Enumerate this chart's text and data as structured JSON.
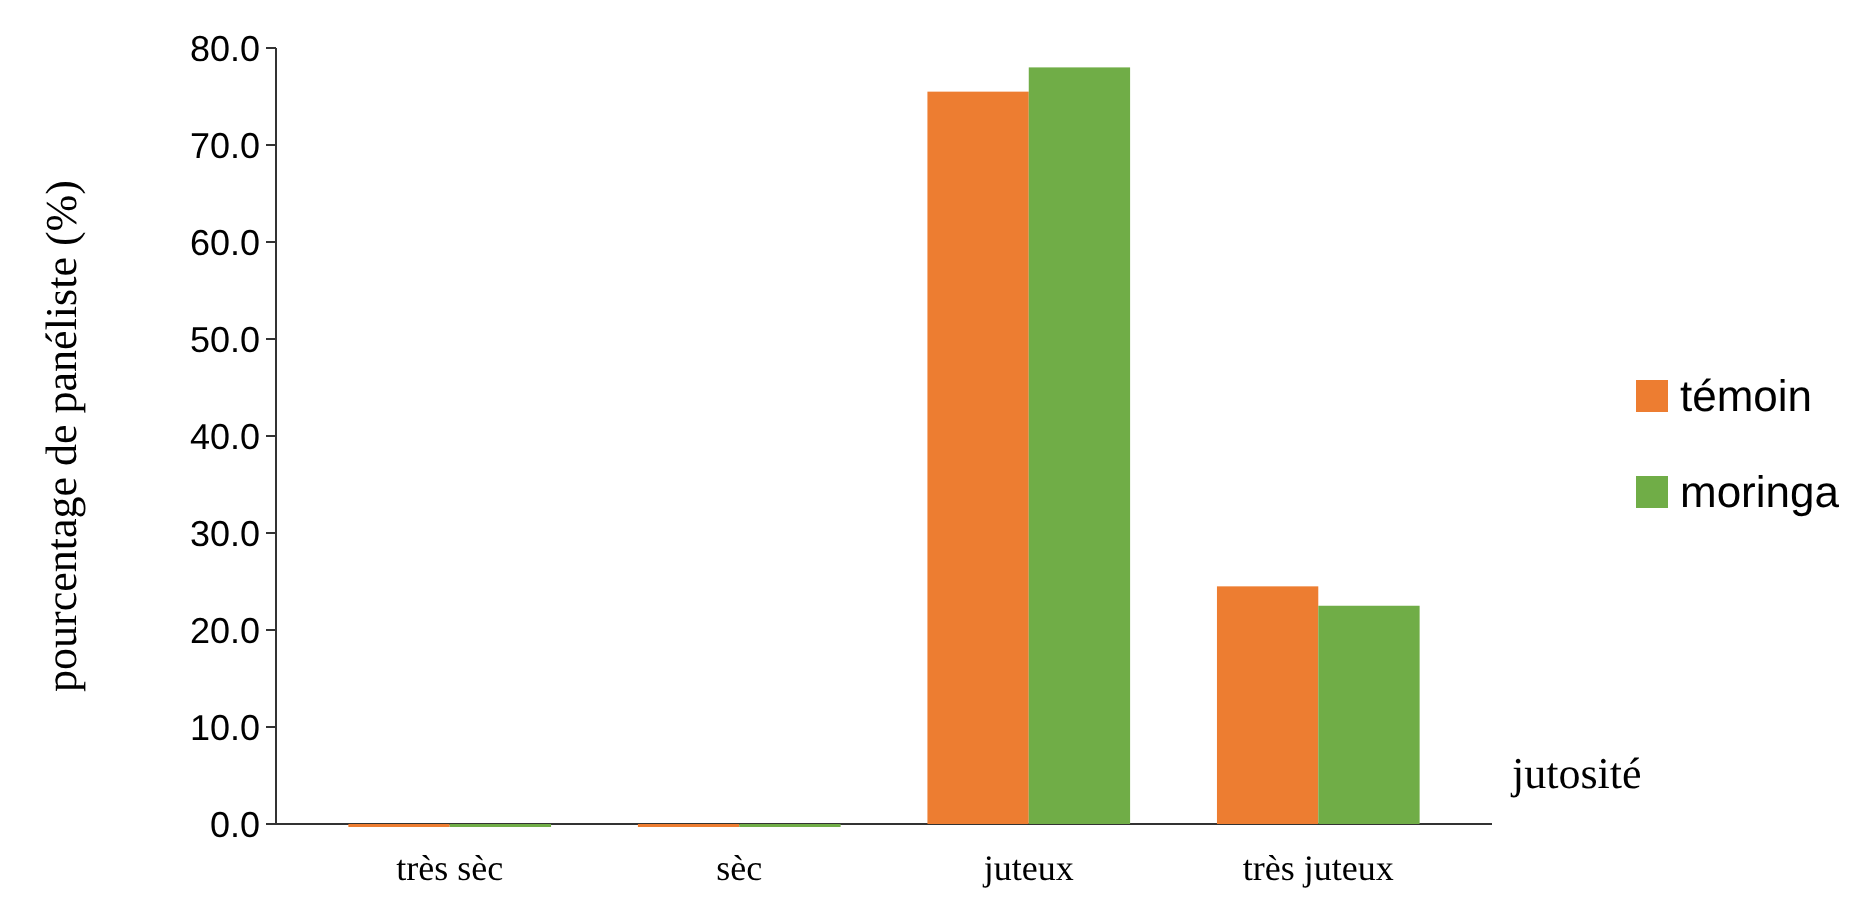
{
  "chart_data": {
    "type": "bar",
    "xlabel": "jutosité",
    "ylabel": "pourcentage de panéliste (%)",
    "categories": [
      "très sèc",
      "sèc",
      "juteux",
      "très juteux"
    ],
    "series": [
      {
        "name": "témoin",
        "color": "#ed7d31",
        "values": [
          0,
          0,
          75.5,
          24.5
        ]
      },
      {
        "name": "moringa",
        "color": "#70ad47",
        "values": [
          0,
          0,
          78,
          22.5
        ]
      }
    ],
    "ylim": [
      0,
      80
    ],
    "yticks": [
      {
        "value": 0,
        "label": "0.0"
      },
      {
        "value": 10,
        "label": "10.0"
      },
      {
        "value": 20,
        "label": "20.0"
      },
      {
        "value": 30,
        "label": "30.0"
      },
      {
        "value": 40,
        "label": "40.0"
      },
      {
        "value": 50,
        "label": "50.0"
      },
      {
        "value": 60,
        "label": "60.0"
      },
      {
        "value": 70,
        "label": "70.0"
      },
      {
        "value": 80,
        "label": "80.0"
      }
    ],
    "grid": false,
    "legend": "right"
  }
}
